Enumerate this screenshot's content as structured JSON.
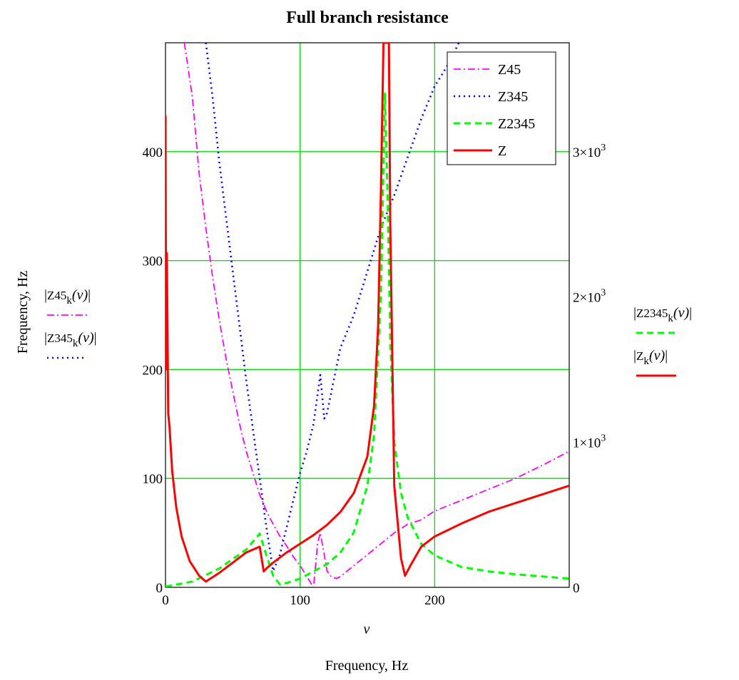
{
  "chart_data": {
    "type": "line",
    "title": "Full branch resistance",
    "xlabel": "Frequency, Hz",
    "xvar": "ν",
    "xlim": [
      0,
      300
    ],
    "xticks": [
      "0",
      "100",
      "200"
    ],
    "xtick_values": [
      0,
      100,
      200
    ],
    "y_left": {
      "label": "Frequency, Hz",
      "lim": [
        0,
        500
      ],
      "ticks": [
        "0",
        "100",
        "200",
        "300",
        "400"
      ],
      "tick_values": [
        0,
        100,
        200,
        300,
        400
      ],
      "series_labels": [
        {
          "name": "Z45",
          "sub": "k",
          "arg": "(ν)",
          "series": "Z45"
        },
        {
          "name": "Z345",
          "sub": "k",
          "arg": "(ν)",
          "series": "Z345"
        }
      ]
    },
    "y_right": {
      "lim": [
        0,
        3750
      ],
      "ticks": [
        {
          "base": "0",
          "exp": ""
        },
        {
          "base": "1×10",
          "exp": "3"
        },
        {
          "base": "2×10",
          "exp": "3"
        },
        {
          "base": "3×10",
          "exp": "3"
        }
      ],
      "tick_values": [
        0,
        1000,
        2000,
        3000
      ],
      "series_labels": [
        {
          "name": "Z2345",
          "sub": "k",
          "arg": "(ν)",
          "series": "Z2345"
        },
        {
          "name": "Z",
          "sub": "k",
          "arg": "(ν)",
          "series": "Z"
        }
      ]
    },
    "grid": true,
    "legend_position": "top-right",
    "series": [
      {
        "name": "Z45",
        "axis": "left",
        "color": "#ff00ff",
        "style": "dashdot",
        "x": [
          14,
          20,
          25,
          30,
          35,
          40,
          45,
          50,
          55,
          60,
          65,
          70,
          75,
          80,
          85,
          90,
          95,
          100,
          105,
          110,
          113,
          115,
          118,
          120,
          123,
          127,
          130,
          140,
          150,
          160,
          170,
          180,
          190,
          200,
          220,
          240,
          260,
          280,
          300
        ],
        "y": [
          500,
          450,
          380,
          330,
          285,
          245,
          210,
          180,
          150,
          125,
          105,
          85,
          70,
          58,
          47,
          38,
          28,
          20,
          10,
          0,
          40,
          50,
          30,
          15,
          10,
          8,
          10,
          20,
          30,
          40,
          50,
          58,
          62,
          70,
          80,
          90,
          100,
          112,
          125
        ]
      },
      {
        "name": "Z345",
        "axis": "left",
        "color": "#0000ff",
        "style": "dotted",
        "x": [
          30,
          35,
          40,
          45,
          50,
          55,
          60,
          65,
          70,
          75,
          80,
          85,
          90,
          95,
          100,
          105,
          110,
          115,
          118,
          120,
          125,
          130,
          140,
          150,
          160,
          170,
          180,
          190,
          200,
          210,
          218
        ],
        "y": [
          500,
          450,
          390,
          340,
          290,
          240,
          190,
          145,
          100,
          55,
          15,
          30,
          55,
          80,
          105,
          125,
          150,
          195,
          155,
          160,
          190,
          220,
          250,
          290,
          330,
          360,
          395,
          430,
          460,
          480,
          500
        ]
      },
      {
        "name": "Z2345",
        "axis": "right",
        "color": "#00ff00",
        "style": "dashed",
        "x": [
          0,
          20,
          40,
          60,
          70,
          75,
          80,
          85,
          90,
          100,
          110,
          120,
          130,
          140,
          150,
          155,
          160,
          163,
          165,
          167,
          170,
          175,
          180,
          190,
          200,
          220,
          240,
          260,
          280,
          300
        ],
        "y": [
          5,
          40,
          130,
          260,
          370,
          220,
          80,
          20,
          30,
          60,
          110,
          160,
          240,
          380,
          700,
          1050,
          2000,
          3400,
          2700,
          1700,
          1000,
          650,
          480,
          300,
          220,
          140,
          110,
          90,
          75,
          60
        ]
      },
      {
        "name": "Z",
        "axis": "right",
        "color": "#ff0000",
        "style": "solid",
        "x": [
          0,
          0.5,
          1,
          2,
          3,
          5,
          8,
          12,
          18,
          25,
          30,
          40,
          50,
          60,
          70,
          73,
          75,
          80,
          90,
          100,
          110,
          120,
          130,
          140,
          150,
          155,
          158,
          160,
          162,
          163,
          164,
          165,
          166,
          167,
          170,
          175,
          178,
          182,
          190,
          200,
          220,
          240,
          260,
          280,
          300
        ],
        "y": [
          3250,
          1500,
          2300,
          1200,
          1100,
          800,
          550,
          350,
          180,
          80,
          40,
          100,
          170,
          240,
          280,
          110,
          130,
          170,
          240,
          300,
          360,
          430,
          520,
          650,
          900,
          1250,
          1800,
          2700,
          3750,
          3750,
          3750,
          3750,
          3750,
          2500,
          700,
          200,
          80,
          150,
          280,
          350,
          440,
          520,
          580,
          640,
          700
        ]
      }
    ]
  }
}
